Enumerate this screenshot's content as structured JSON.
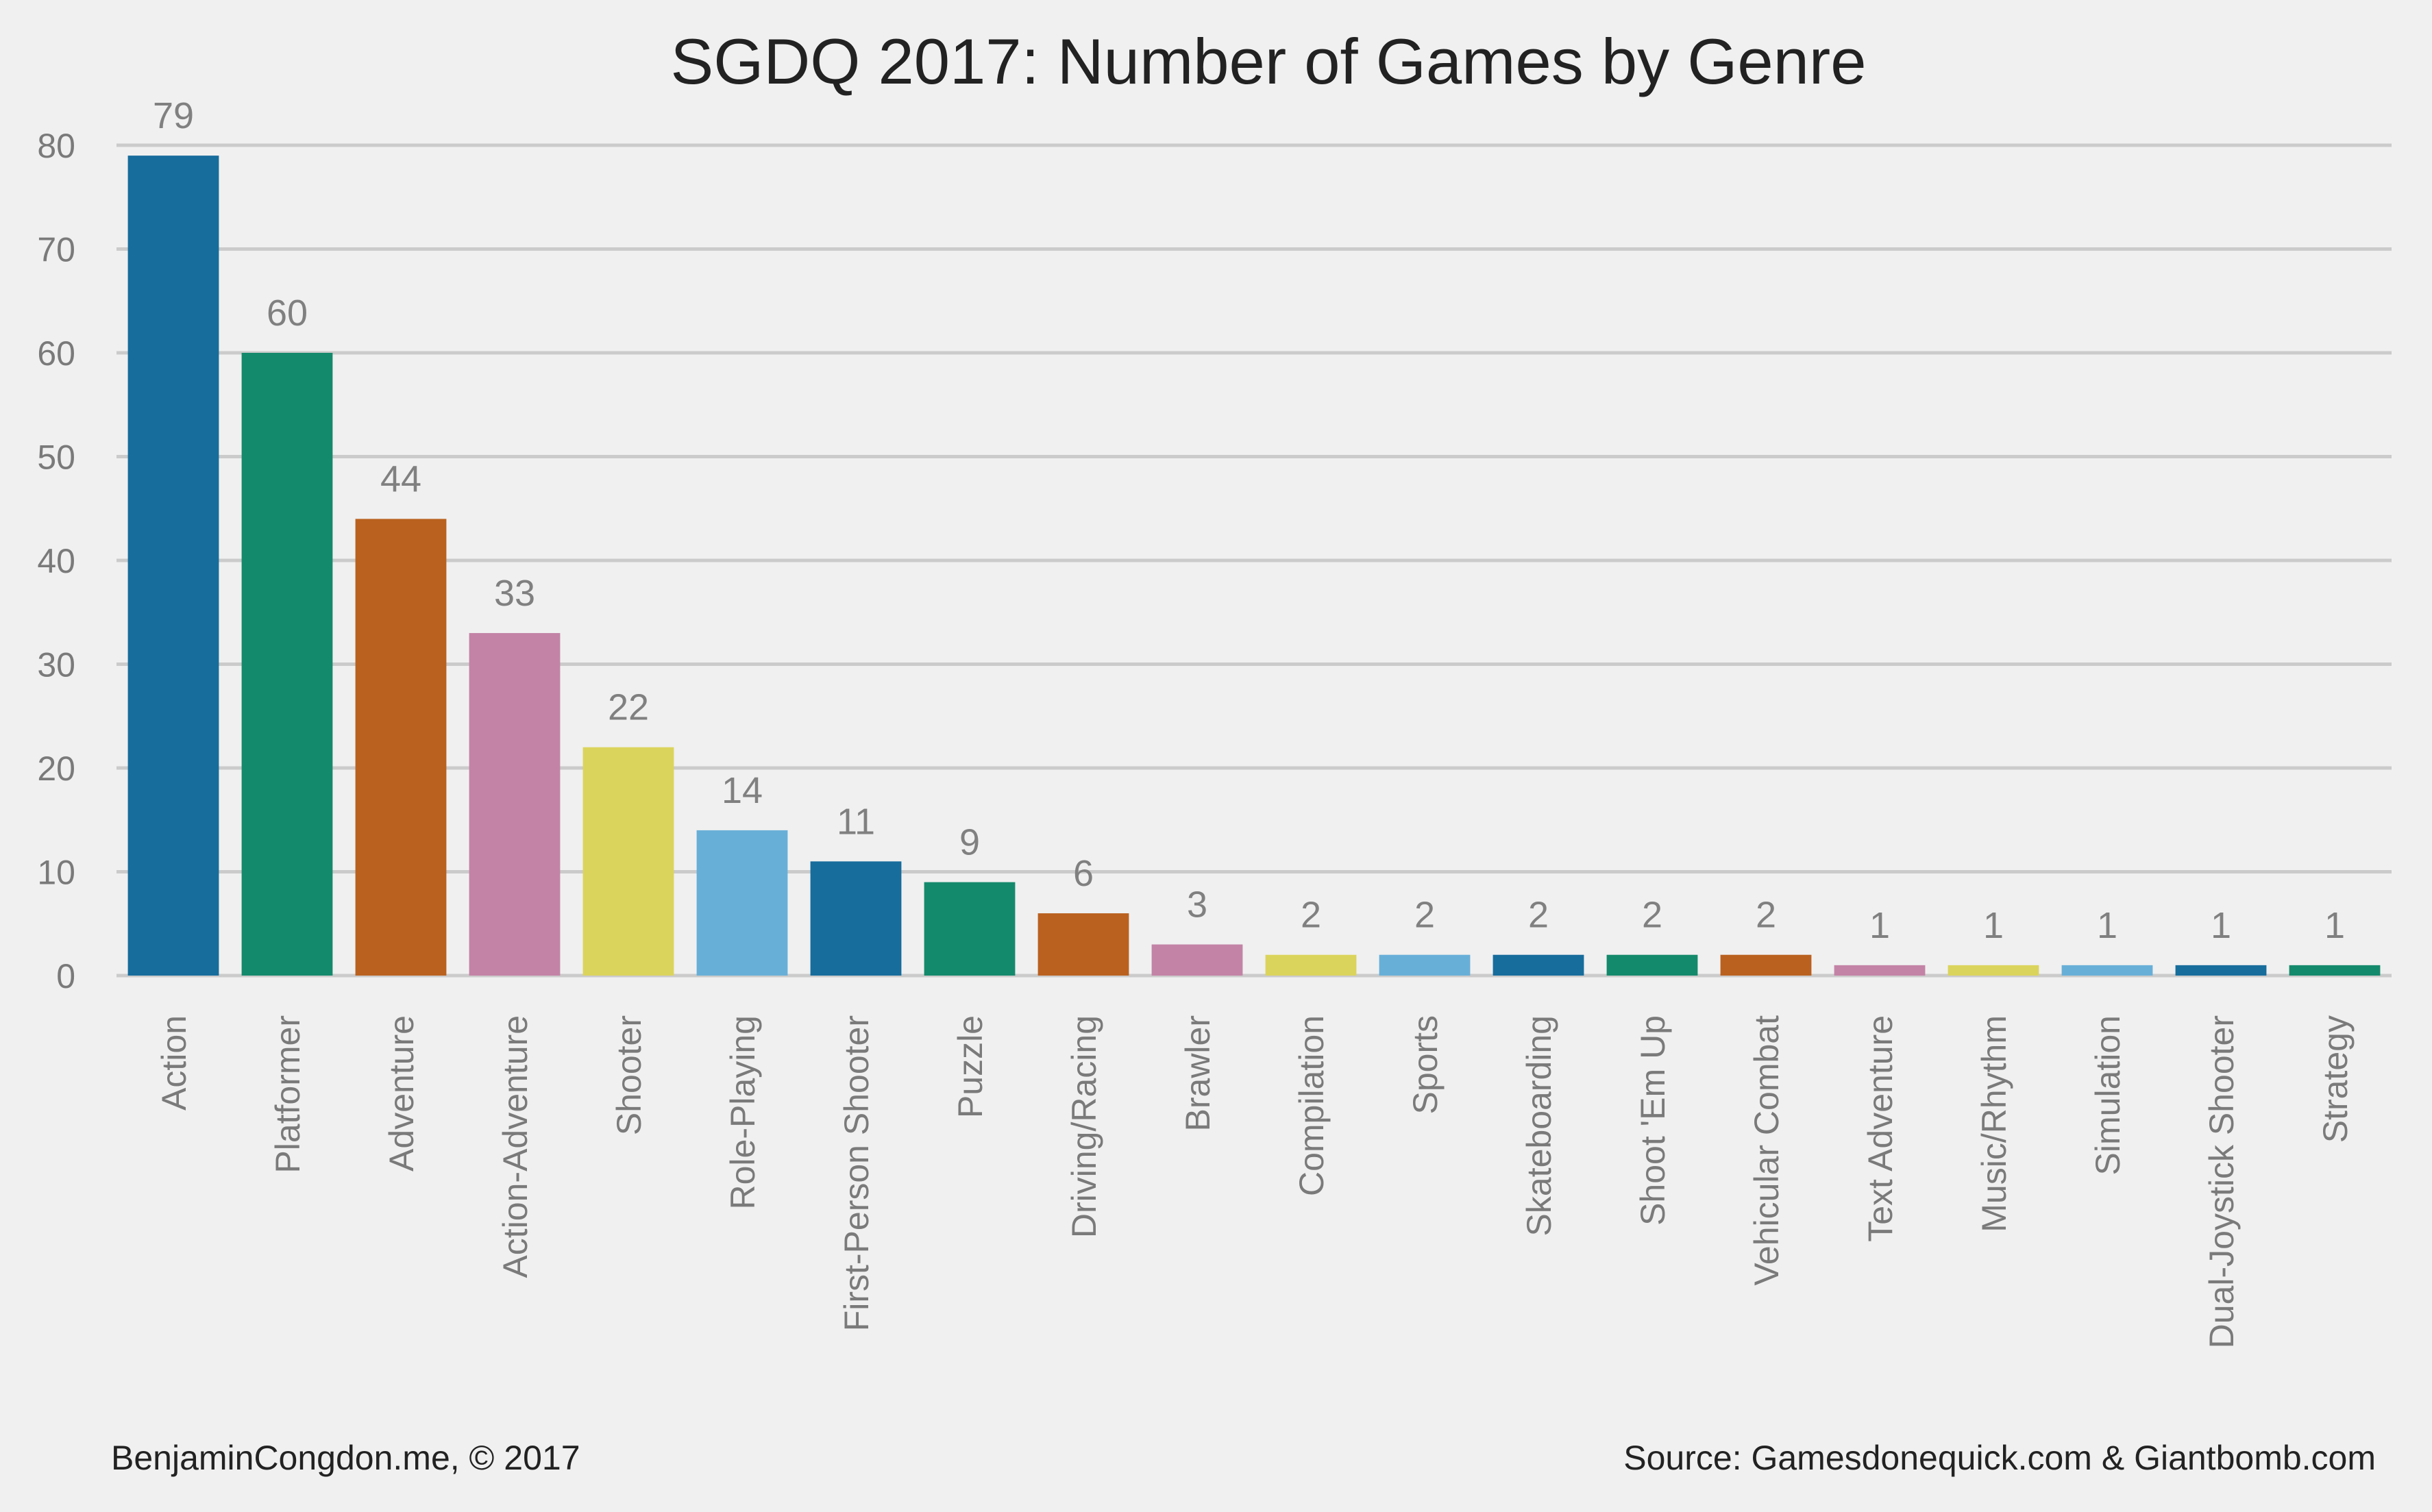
{
  "chart_data": {
    "type": "bar",
    "title": "SGDQ 2017: Number of Games by Genre",
    "xlabel": "",
    "ylabel": "",
    "ylim": [
      0,
      80
    ],
    "yticks": [
      0,
      10,
      20,
      30,
      40,
      50,
      60,
      70,
      80
    ],
    "grid": true,
    "categories": [
      "Action",
      "Platformer",
      "Adventure",
      "Action-Adventure",
      "Shooter",
      "Role-Playing",
      "First-Person Shooter",
      "Puzzle",
      "Driving/Racing",
      "Brawler",
      "Compilation",
      "Sports",
      "Skateboarding",
      "Shoot 'Em Up",
      "Vehicular Combat",
      "Text Adventure",
      "Music/Rhythm",
      "Simulation",
      "Dual-Joystick Shooter",
      "Strategy"
    ],
    "values": [
      79,
      60,
      44,
      33,
      22,
      14,
      11,
      9,
      6,
      3,
      2,
      2,
      2,
      2,
      2,
      1,
      1,
      1,
      1,
      1
    ],
    "colors": [
      "#176d9c",
      "#148a6c",
      "#ba611f",
      "#c383a6",
      "#dbd45c",
      "#68afd8",
      "#176d9c",
      "#148a6c",
      "#ba611f",
      "#c383a6",
      "#dbd45c",
      "#68afd8",
      "#176d9c",
      "#148a6c",
      "#ba611f",
      "#c383a6",
      "#dbd45c",
      "#68afd8",
      "#176d9c",
      "#148a6c"
    ]
  },
  "footer": {
    "left": "BenjaminCongdon.me, © 2017",
    "right": "Source: Gamesdonequick.com & Giantbomb.com"
  },
  "style": {
    "background": "#f0f0f0",
    "grid_color": "#cbcbcb",
    "value_label_color": "#808080",
    "tick_label_color": "#7a7a7a"
  }
}
